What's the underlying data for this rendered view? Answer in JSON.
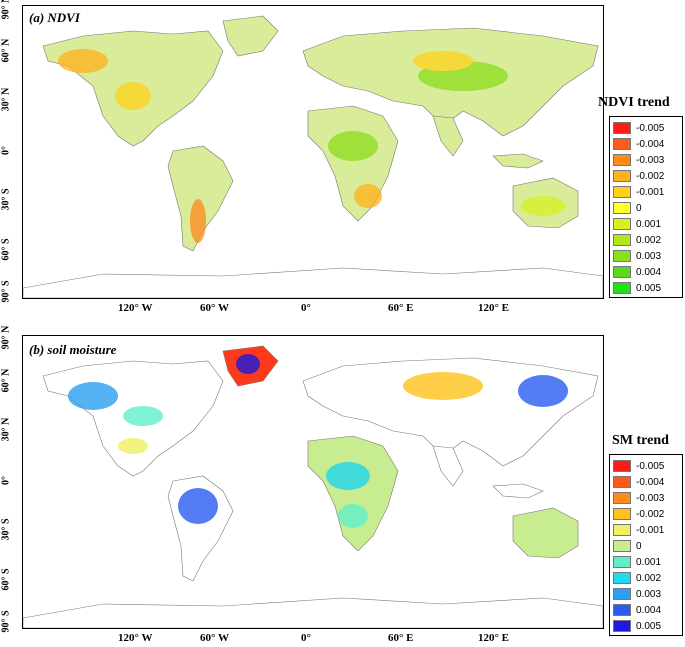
{
  "panels": [
    {
      "title": "(a) NDVI",
      "legend_title": "NDVI trend",
      "legend_items": [
        {
          "label": "-0.005",
          "color": "#ff1a1a"
        },
        {
          "label": "-0.004",
          "color": "#ff5a1a"
        },
        {
          "label": "-0.003",
          "color": "#ff8a1a"
        },
        {
          "label": "-0.002",
          "color": "#ffb01a"
        },
        {
          "label": "-0.001",
          "color": "#ffd21a"
        },
        {
          "label": "0",
          "color": "#ffff33"
        },
        {
          "label": "0.001",
          "color": "#d8f020"
        },
        {
          "label": "0.002",
          "color": "#b0e81a"
        },
        {
          "label": "0.003",
          "color": "#8ade1a"
        },
        {
          "label": "0.004",
          "color": "#5fd81a"
        },
        {
          "label": "0.005",
          "color": "#22e01a"
        }
      ]
    },
    {
      "title": "(b) soil moisture",
      "legend_title": "SM trend",
      "legend_items": [
        {
          "label": "-0.005",
          "color": "#ff1a1a"
        },
        {
          "label": "-0.004",
          "color": "#ff5a1a"
        },
        {
          "label": "-0.003",
          "color": "#ff8a1a"
        },
        {
          "label": "-0.002",
          "color": "#ffc21a"
        },
        {
          "label": "-0.001",
          "color": "#f0f060"
        },
        {
          "label": "0",
          "color": "#c8ec90"
        },
        {
          "label": "0.001",
          "color": "#60f0c8"
        },
        {
          "label": "0.002",
          "color": "#20d8f0"
        },
        {
          "label": "0.003",
          "color": "#2aa0f0"
        },
        {
          "label": "0.004",
          "color": "#2a5cf0"
        },
        {
          "label": "0.005",
          "color": "#1a1ae0"
        }
      ]
    }
  ],
  "lat_ticks": [
    "90° N",
    "60° N",
    "30° N",
    "0°",
    "30° S",
    "60° S",
    "90° S"
  ],
  "lon_ticks": [
    "120° W",
    "60° W",
    "0°",
    "60° E",
    "120° E"
  ]
}
